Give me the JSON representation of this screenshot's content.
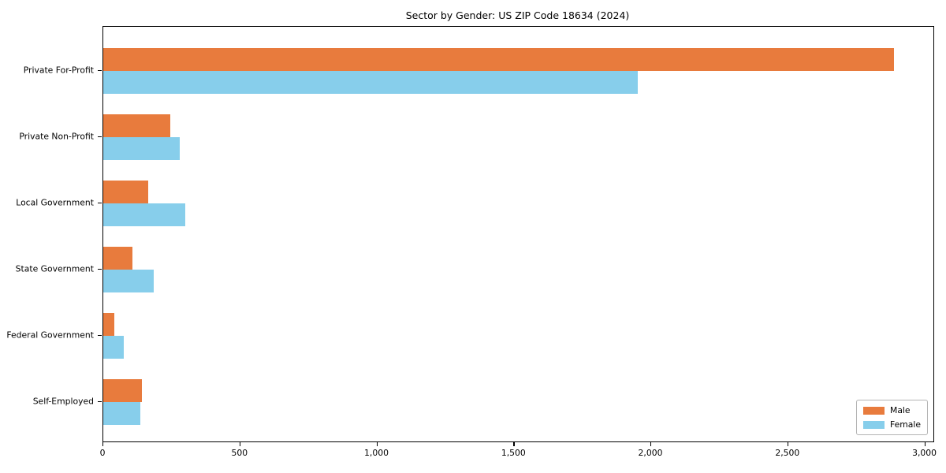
{
  "title": "Sector by Gender: US ZIP Code 18634 (2024)",
  "chart_data": {
    "type": "bar",
    "orientation": "horizontal",
    "title": "Sector by Gender: US ZIP Code 18634 (2024)",
    "categories": [
      "Private For-Profit",
      "Private Non-Profit",
      "Local Government",
      "State Government",
      "Federal Government",
      "Self-Employed"
    ],
    "series": [
      {
        "name": "Male",
        "color": "#e87b3d",
        "values": [
          2885,
          245,
          165,
          105,
          40,
          140
        ]
      },
      {
        "name": "Female",
        "color": "#87ceeb",
        "values": [
          1950,
          280,
          300,
          185,
          75,
          135
        ]
      }
    ],
    "xlabel": "",
    "ylabel": "",
    "xlim": [
      0,
      3030
    ],
    "x_ticks": [
      0,
      500,
      1000,
      1500,
      2000,
      2500,
      3000
    ],
    "x_tick_labels": [
      "0",
      "500",
      "1,000",
      "1,500",
      "2,000",
      "2,500",
      "3,000"
    ],
    "grid": false,
    "legend": {
      "position": "lower right",
      "entries": [
        "Male",
        "Female"
      ]
    },
    "colors": {
      "male": "#e87b3d",
      "female": "#87ceeb",
      "spine": "#000000",
      "background": "#ffffff",
      "legend_border": "#b3b3b3"
    }
  }
}
